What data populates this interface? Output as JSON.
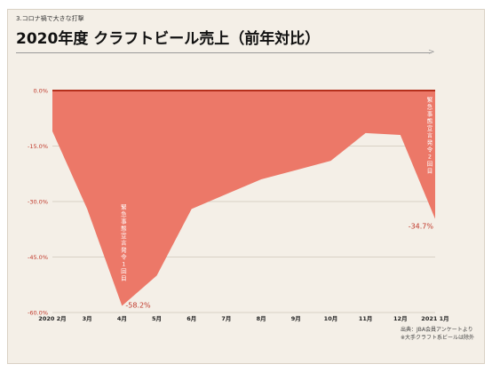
{
  "header": {
    "subtitle": "3.コロナ禍で大きな打撃",
    "title": "2020年度 クラフトビール売上（前年対比）"
  },
  "source": {
    "line1": "出典：JBA会員アンケートより",
    "line2": "※大手クラフト系ビールは除外"
  },
  "colors": {
    "fill": "#ec7868",
    "zero_line": "#b5301c",
    "axis_label": "#c0392b",
    "annotation": "#c0392b",
    "vertical_text": "#ffffff",
    "background": "#f4efe7"
  },
  "chart_data": {
    "type": "area",
    "title": "2020年度 クラフトビール売上（前年対比）",
    "xlabel": "",
    "ylabel": "",
    "categories": [
      "2020 2月",
      "3月",
      "4月",
      "5月",
      "6月",
      "7月",
      "8月",
      "9月",
      "10月",
      "11月",
      "12月",
      "2021 1月"
    ],
    "values": [
      -11,
      -32,
      -58.2,
      -50,
      -32,
      -28,
      -24,
      -21.5,
      -19,
      -11.5,
      -12,
      -34.7
    ],
    "ylim": [
      -60,
      0
    ],
    "yticks": [
      0,
      -15,
      -30,
      -45,
      -60
    ],
    "ytick_labels": [
      "0.0%",
      "-15.0%",
      "-30.0%",
      "-45.0%",
      "-60.0%"
    ],
    "grid": true,
    "annotations": [
      {
        "category": "4月",
        "value": -58.2,
        "label": "-58.2%",
        "vertical_note": "緊急事態宣言発令1回目"
      },
      {
        "category": "2021 1月",
        "value": -34.7,
        "label": "-34.7%",
        "vertical_note": "緊急事態宣言発令2回目"
      }
    ]
  }
}
